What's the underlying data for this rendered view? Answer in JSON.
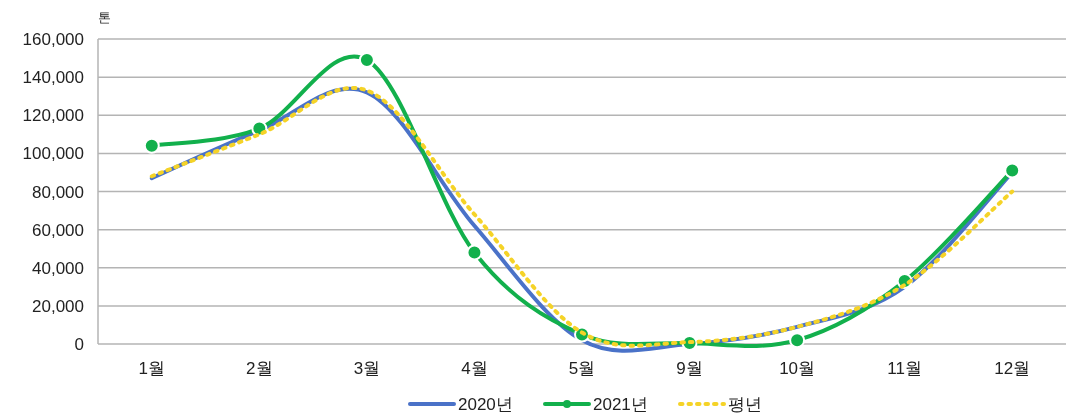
{
  "chart_data": {
    "type": "line",
    "ylabel": "톤",
    "categories": [
      "1월",
      "2월",
      "3월",
      "4월",
      "5월",
      "9월",
      "10월",
      "11월",
      "12월"
    ],
    "series": [
      {
        "name": "2020년",
        "color": "#4a72c8",
        "line_style": "solid",
        "marker": "none",
        "values": [
          87000,
          112000,
          132000,
          62000,
          2000,
          0,
          9000,
          30000,
          90000
        ]
      },
      {
        "name": "2021년",
        "color": "#12b04c",
        "line_style": "solid",
        "marker": "circle",
        "values": [
          104000,
          113000,
          149000,
          48000,
          5000,
          500,
          2000,
          33000,
          91000
        ]
      },
      {
        "name": "평년",
        "color": "#f5d327",
        "line_style": "dotted",
        "marker": "none",
        "values": [
          88000,
          110000,
          133000,
          68000,
          6000,
          1000,
          9000,
          31000,
          80000
        ]
      }
    ],
    "ylim": [
      0,
      160000
    ],
    "yticks": [
      {
        "value": 0,
        "label": "0"
      },
      {
        "value": 20000,
        "label": "20,000"
      },
      {
        "value": 40000,
        "label": "40,000"
      },
      {
        "value": 60000,
        "label": "60,000"
      },
      {
        "value": 80000,
        "label": "80,000"
      },
      {
        "value": 100000,
        "label": "100,000"
      },
      {
        "value": 120000,
        "label": "120,000"
      },
      {
        "value": 140000,
        "label": "140,000"
      },
      {
        "value": 160000,
        "label": "160,000"
      }
    ],
    "grid": "y",
    "legend": "bottom"
  }
}
